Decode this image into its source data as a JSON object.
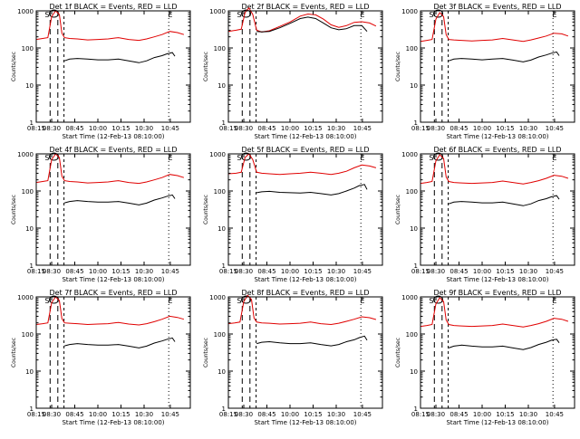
{
  "colors": {
    "events": "#000000",
    "lld": "#e00000",
    "axis": "#000000"
  },
  "shared": {
    "xlabel": "Start Time (12-Feb-13 08:10:00)",
    "ylabel": "Counts/sec",
    "xticks": [
      "08:15",
      "08:30",
      "08:45",
      "10:00",
      "10:15",
      "10:30",
      "10:45"
    ],
    "yticks": [
      "1",
      "10",
      "100",
      "1000"
    ],
    "marker_s": "S",
    "marker_e": "E",
    "xlim": [
      0,
      6
    ],
    "ylim_log10": [
      0,
      3
    ]
  },
  "chart_data": [
    {
      "type": "line",
      "title": "Det 1f BLACK = Events, RED = LLD",
      "series": [
        {
          "name": "LLD",
          "color": "red",
          "x": [
            0,
            0.25,
            0.45,
            0.6,
            0.75,
            0.9,
            1.0,
            1.1,
            1.3,
            1.6,
            2.0,
            2.4,
            2.8,
            3.2,
            3.6,
            4.0,
            4.3,
            4.6,
            4.9,
            5.2,
            5.5,
            5.75
          ],
          "y": [
            170,
            180,
            190,
            700,
            1000,
            800,
            250,
            190,
            180,
            175,
            165,
            170,
            175,
            190,
            170,
            160,
            175,
            200,
            230,
            280,
            260,
            230
          ]
        },
        {
          "name": "Events",
          "color": "black",
          "x": [
            1.1,
            1.3,
            1.6,
            2.0,
            2.4,
            2.8,
            3.2,
            3.6,
            4.0,
            4.3,
            4.6,
            4.9,
            5.1,
            5.3,
            5.4
          ],
          "y": [
            45,
            50,
            52,
            50,
            48,
            48,
            50,
            45,
            40,
            45,
            55,
            62,
            70,
            75,
            60
          ]
        }
      ]
    },
    {
      "type": "line",
      "title": "Det 2f BLACK = Events, RED = LLD",
      "series": [
        {
          "name": "LLD",
          "color": "red",
          "x": [
            0,
            0.3,
            0.5,
            0.65,
            0.8,
            0.95,
            1.1,
            1.3,
            1.6,
            2.0,
            2.4,
            2.8,
            3.1,
            3.4,
            3.7,
            4.0,
            4.3,
            4.6,
            4.9,
            5.2,
            5.5,
            5.75
          ],
          "y": [
            280,
            300,
            320,
            900,
            1200,
            800,
            300,
            270,
            290,
            380,
            500,
            720,
            820,
            780,
            600,
            420,
            360,
            400,
            490,
            510,
            470,
            390
          ]
        },
        {
          "name": "Events",
          "color": "black",
          "x": [
            1.1,
            1.3,
            1.6,
            2.0,
            2.4,
            2.8,
            3.1,
            3.4,
            3.7,
            4.0,
            4.3,
            4.6,
            4.9,
            5.2,
            5.4
          ],
          "y": [
            280,
            270,
            280,
            350,
            460,
            620,
            680,
            620,
            470,
            350,
            310,
            330,
            400,
            400,
            280
          ]
        }
      ]
    },
    {
      "type": "line",
      "title": "Det 3f BLACK = Events, RED = LLD",
      "series": [
        {
          "name": "LLD",
          "color": "red",
          "x": [
            0,
            0.25,
            0.45,
            0.6,
            0.75,
            0.9,
            1.0,
            1.1,
            1.3,
            1.6,
            2.0,
            2.4,
            2.8,
            3.2,
            3.6,
            4.0,
            4.3,
            4.6,
            4.9,
            5.2,
            5.5,
            5.75
          ],
          "y": [
            150,
            160,
            170,
            600,
            900,
            700,
            230,
            170,
            165,
            160,
            155,
            160,
            165,
            180,
            165,
            150,
            165,
            185,
            210,
            250,
            240,
            210
          ]
        },
        {
          "name": "Events",
          "color": "black",
          "x": [
            1.1,
            1.3,
            1.6,
            2.0,
            2.4,
            2.8,
            3.2,
            3.6,
            4.0,
            4.3,
            4.6,
            4.9,
            5.1,
            5.3,
            5.4
          ],
          "y": [
            45,
            50,
            52,
            50,
            48,
            50,
            52,
            47,
            42,
            47,
            57,
            65,
            72,
            78,
            62
          ]
        }
      ]
    },
    {
      "type": "line",
      "title": "Det 4f BLACK = Events, RED = LLD",
      "series": [
        {
          "name": "LLD",
          "color": "red",
          "x": [
            0,
            0.25,
            0.45,
            0.6,
            0.75,
            0.9,
            1.0,
            1.1,
            1.3,
            1.6,
            2.0,
            2.4,
            2.8,
            3.2,
            3.6,
            4.0,
            4.3,
            4.6,
            4.9,
            5.2,
            5.5,
            5.75
          ],
          "y": [
            170,
            180,
            190,
            700,
            1000,
            800,
            250,
            190,
            180,
            175,
            165,
            170,
            175,
            190,
            170,
            160,
            175,
            200,
            230,
            280,
            260,
            230
          ]
        },
        {
          "name": "Events",
          "color": "black",
          "x": [
            1.1,
            1.3,
            1.6,
            2.0,
            2.4,
            2.8,
            3.2,
            3.6,
            4.0,
            4.3,
            4.6,
            4.9,
            5.1,
            5.3,
            5.4
          ],
          "y": [
            48,
            52,
            55,
            52,
            50,
            50,
            52,
            47,
            42,
            47,
            57,
            65,
            72,
            78,
            62
          ]
        }
      ]
    },
    {
      "type": "line",
      "title": "Det 5f BLACK = Events, RED = LLD",
      "series": [
        {
          "name": "LLD",
          "color": "red",
          "x": [
            0,
            0.3,
            0.5,
            0.65,
            0.8,
            0.95,
            1.1,
            1.3,
            1.6,
            2.0,
            2.4,
            2.8,
            3.2,
            3.6,
            4.0,
            4.3,
            4.6,
            4.9,
            5.2,
            5.5,
            5.75
          ],
          "y": [
            290,
            300,
            320,
            800,
            1000,
            700,
            320,
            300,
            290,
            280,
            290,
            300,
            320,
            300,
            280,
            300,
            340,
            420,
            500,
            470,
            420
          ]
        },
        {
          "name": "Events",
          "color": "black",
          "x": [
            1.1,
            1.3,
            1.6,
            2.0,
            2.4,
            2.8,
            3.2,
            3.6,
            4.0,
            4.3,
            4.6,
            4.9,
            5.1,
            5.3,
            5.4
          ],
          "y": [
            90,
            95,
            98,
            92,
            90,
            88,
            92,
            85,
            78,
            85,
            100,
            120,
            140,
            150,
            110
          ]
        }
      ]
    },
    {
      "type": "line",
      "title": "Det 6f BLACK = Events, RED = LLD",
      "series": [
        {
          "name": "LLD",
          "color": "red",
          "x": [
            0,
            0.25,
            0.45,
            0.6,
            0.75,
            0.9,
            1.0,
            1.1,
            1.3,
            1.6,
            2.0,
            2.4,
            2.8,
            3.2,
            3.6,
            4.0,
            4.3,
            4.6,
            4.9,
            5.2,
            5.5,
            5.75
          ],
          "y": [
            160,
            170,
            180,
            650,
            950,
            750,
            240,
            180,
            170,
            165,
            160,
            165,
            170,
            185,
            170,
            155,
            170,
            190,
            220,
            265,
            250,
            220
          ]
        },
        {
          "name": "Events",
          "color": "black",
          "x": [
            1.1,
            1.3,
            1.6,
            2.0,
            2.4,
            2.8,
            3.2,
            3.6,
            4.0,
            4.3,
            4.6,
            4.9,
            5.1,
            5.3,
            5.4
          ],
          "y": [
            45,
            50,
            52,
            50,
            48,
            48,
            50,
            45,
            40,
            45,
            55,
            62,
            70,
            75,
            60
          ]
        }
      ]
    },
    {
      "type": "line",
      "title": "Det 7f BLACK = Events, RED = LLD",
      "series": [
        {
          "name": "LLD",
          "color": "red",
          "x": [
            0,
            0.25,
            0.45,
            0.6,
            0.75,
            0.9,
            1.0,
            1.1,
            1.3,
            1.6,
            2.0,
            2.4,
            2.8,
            3.2,
            3.6,
            4.0,
            4.3,
            4.6,
            4.9,
            5.2,
            5.5,
            5.75
          ],
          "y": [
            180,
            190,
            200,
            700,
            1000,
            800,
            260,
            200,
            195,
            190,
            180,
            185,
            190,
            205,
            185,
            175,
            190,
            215,
            250,
            300,
            280,
            250
          ]
        },
        {
          "name": "Events",
          "color": "black",
          "x": [
            1.1,
            1.3,
            1.6,
            2.0,
            2.4,
            2.8,
            3.2,
            3.6,
            4.0,
            4.3,
            4.6,
            4.9,
            5.1,
            5.3,
            5.4
          ],
          "y": [
            48,
            52,
            55,
            52,
            50,
            50,
            52,
            47,
            42,
            47,
            57,
            65,
            72,
            78,
            62
          ]
        }
      ]
    },
    {
      "type": "line",
      "title": "Det 8f BLACK = Events, RED = LLD",
      "series": [
        {
          "name": "LLD",
          "color": "red",
          "x": [
            0,
            0.25,
            0.45,
            0.6,
            0.75,
            0.9,
            1.0,
            1.1,
            1.3,
            1.6,
            2.0,
            2.4,
            2.8,
            3.2,
            3.6,
            4.0,
            4.3,
            4.6,
            4.9,
            5.2,
            5.5,
            5.75
          ],
          "y": [
            190,
            200,
            210,
            750,
            1100,
            850,
            270,
            210,
            200,
            195,
            185,
            190,
            195,
            210,
            190,
            180,
            195,
            220,
            250,
            290,
            275,
            245
          ]
        },
        {
          "name": "Events",
          "color": "black",
          "x": [
            1.1,
            1.3,
            1.6,
            2.0,
            2.4,
            2.8,
            3.2,
            3.6,
            4.0,
            4.3,
            4.6,
            4.9,
            5.1,
            5.3,
            5.4
          ],
          "y": [
            55,
            60,
            62,
            58,
            55,
            55,
            58,
            52,
            48,
            52,
            62,
            70,
            80,
            88,
            68
          ]
        }
      ]
    },
    {
      "type": "line",
      "title": "Det 9f BLACK = Events, RED = LLD",
      "series": [
        {
          "name": "LLD",
          "color": "red",
          "x": [
            0,
            0.25,
            0.45,
            0.6,
            0.75,
            0.9,
            1.0,
            1.1,
            1.3,
            1.6,
            2.0,
            2.4,
            2.8,
            3.2,
            3.6,
            4.0,
            4.3,
            4.6,
            4.9,
            5.2,
            5.5,
            5.75
          ],
          "y": [
            160,
            170,
            180,
            650,
            950,
            750,
            240,
            180,
            170,
            165,
            160,
            165,
            170,
            185,
            170,
            155,
            170,
            190,
            220,
            265,
            250,
            220
          ]
        },
        {
          "name": "Events",
          "color": "black",
          "x": [
            1.1,
            1.3,
            1.6,
            2.0,
            2.4,
            2.8,
            3.2,
            3.6,
            4.0,
            4.3,
            4.6,
            4.9,
            5.1,
            5.3,
            5.4
          ],
          "y": [
            42,
            47,
            50,
            47,
            45,
            45,
            47,
            42,
            38,
            43,
            52,
            60,
            68,
            72,
            58
          ]
        }
      ]
    }
  ]
}
